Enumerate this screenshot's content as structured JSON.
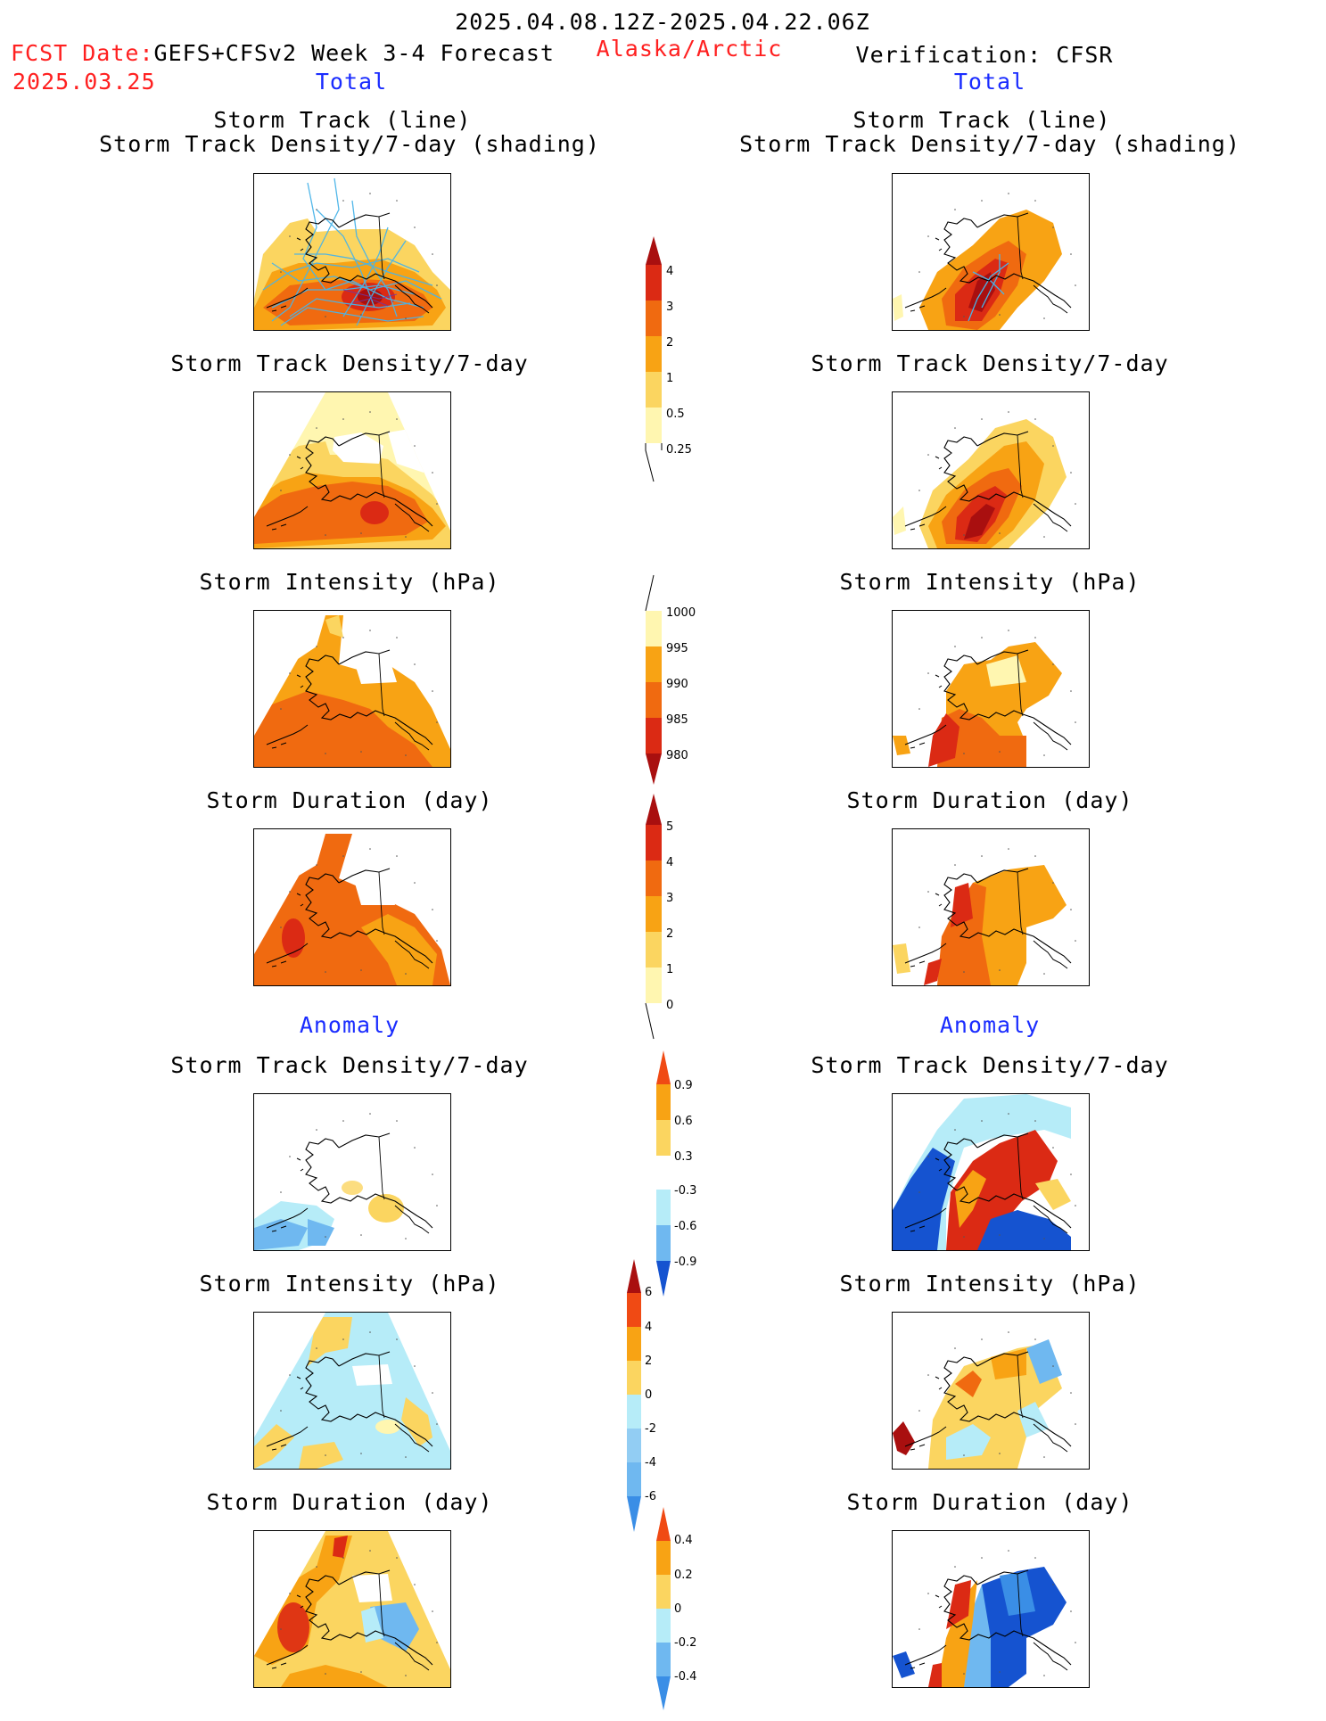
{
  "header": {
    "date_range": "2025.04.08.12Z-2025.04.22.06Z",
    "fcst_prefix": "FCST Date:",
    "fcst_model": "GEFS+CFSv2 Week 3-4 Forecast",
    "fcst_date": "2025.03.25",
    "region": "Alaska/Arctic",
    "verification": "Verification: CFSR"
  },
  "columns": {
    "left_total": "Total",
    "right_total": "Total",
    "left_anomaly": "Anomaly",
    "right_anomaly": "Anomaly"
  },
  "panel_titles": {
    "track_line": "Storm Track (line)",
    "track_density_shading": "Storm Track Density/7-day (shading)",
    "track_density": "Storm Track Density/7-day",
    "intensity": "Storm Intensity (hPa)",
    "duration": "Storm Duration (day)"
  },
  "colorbars": {
    "density_total": [
      "4",
      "3",
      "2",
      "1",
      "0.5",
      "0.25"
    ],
    "intensity_total": [
      "1000",
      "995",
      "990",
      "985",
      "980"
    ],
    "duration_total": [
      "5",
      "4",
      "3",
      "2",
      "1",
      "0"
    ],
    "density_anomaly": [
      "0.9",
      "0.6",
      "0.3",
      "-0.3",
      "-0.6",
      "-0.9"
    ],
    "intensity_anomaly": [
      "6",
      "4",
      "2",
      "0",
      "-2",
      "-4",
      "-6"
    ],
    "duration_anomaly": [
      "0.4",
      "0.2",
      "0",
      "-0.2",
      "-0.4"
    ]
  },
  "colors": {
    "lightyellow": "#fff6b0",
    "yellow": "#fbd560",
    "orange": "#f8a314",
    "darkorange": "#f06a10",
    "red": "#db2a14",
    "darkred": "#a90f0f",
    "lightblue": "#b6ecf8",
    "blue": "#6fb8f0",
    "midblue": "#3a8ee6",
    "darkblue": "#1553d0",
    "track_line": "#49b4e8"
  }
}
